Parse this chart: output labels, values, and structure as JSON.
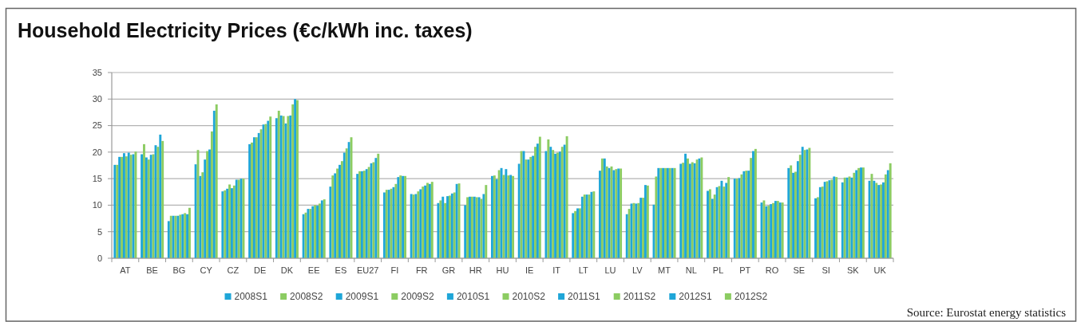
{
  "chart_data": {
    "type": "bar",
    "title": "Household Electricity Prices (€c/kWh inc. taxes)",
    "categories": [
      "AT",
      "BE",
      "BG",
      "CY",
      "CZ",
      "DE",
      "DK",
      "EE",
      "ES",
      "EU27",
      "FI",
      "FR",
      "GR",
      "HR",
      "HU",
      "IE",
      "IT",
      "LT",
      "LU",
      "LV",
      "MT",
      "NL",
      "PL",
      "PT",
      "RO",
      "SE",
      "SI",
      "SK",
      "UK"
    ],
    "series": [
      {
        "name": "2008S1",
        "color": "#1fa6d8",
        "values": [
          17.6,
          19.6,
          7.0,
          17.7,
          12.6,
          21.5,
          26.4,
          8.3,
          13.5,
          15.9,
          12.4,
          12.1,
          10.4,
          10.0,
          15.5,
          17.8,
          20.2,
          8.5,
          16.5,
          8.3,
          10.1,
          17.8,
          12.7,
          15.0,
          10.5,
          17.0,
          11.3,
          14.3,
          14.6
        ]
      },
      {
        "name": "2008S2",
        "color": "#8ccc62",
        "values": [
          17.6,
          21.5,
          8.0,
          20.4,
          12.8,
          21.8,
          27.8,
          8.6,
          15.6,
          16.4,
          12.9,
          12.0,
          10.9,
          11.5,
          15.6,
          20.2,
          22.4,
          8.9,
          18.8,
          9.3,
          15.4,
          18.0,
          13.0,
          15.0,
          10.9,
          17.5,
          11.5,
          15.2,
          15.9
        ]
      },
      {
        "name": "2009S1",
        "color": "#1fa6d8",
        "values": [
          19.1,
          19.0,
          8.0,
          15.5,
          13.1,
          22.8,
          26.9,
          9.3,
          16.0,
          16.4,
          12.9,
          12.1,
          11.6,
          11.6,
          14.9,
          20.2,
          21.0,
          9.4,
          18.8,
          10.3,
          17.0,
          19.7,
          11.2,
          15.1,
          9.8,
          16.1,
          13.4,
          15.2,
          14.6
        ]
      },
      {
        "name": "2009S2",
        "color": "#8ccc62",
        "values": [
          19.1,
          18.6,
          8.0,
          16.2,
          13.9,
          22.8,
          26.8,
          9.3,
          16.9,
          16.5,
          13.1,
          12.6,
          10.4,
          11.6,
          16.6,
          18.6,
          20.4,
          9.4,
          17.3,
          10.4,
          17.0,
          18.8,
          12.0,
          15.8,
          9.9,
          16.3,
          13.5,
          15.4,
          14.2
        ]
      },
      {
        "name": "2010S1",
        "color": "#1fa6d8",
        "values": [
          19.8,
          19.5,
          8.0,
          18.6,
          13.2,
          23.6,
          25.4,
          9.8,
          17.6,
          16.8,
          13.4,
          13.0,
          11.7,
          11.6,
          17.0,
          18.6,
          19.7,
          11.6,
          17.0,
          10.3,
          17.0,
          17.8,
          13.4,
          16.4,
          10.2,
          18.3,
          14.4,
          15.2,
          13.8
        ]
      },
      {
        "name": "2010S2",
        "color": "#8ccc62",
        "values": [
          19.2,
          19.6,
          8.2,
          20.2,
          13.7,
          24.3,
          26.8,
          10.0,
          18.3,
          17.2,
          14.0,
          13.5,
          11.8,
          11.5,
          15.7,
          19.1,
          19.9,
          12.0,
          17.3,
          10.4,
          17.0,
          18.1,
          13.6,
          16.5,
          10.4,
          19.5,
          14.5,
          16.1,
          13.9
        ]
      },
      {
        "name": "2011S1",
        "color": "#1fa6d8",
        "values": [
          19.9,
          21.3,
          8.3,
          20.5,
          14.8,
          25.2,
          26.9,
          9.9,
          19.9,
          17.9,
          15.3,
          13.7,
          12.2,
          11.5,
          16.8,
          19.3,
          20.1,
          12.0,
          16.6,
          11.4,
          17.0,
          17.9,
          14.6,
          16.5,
          10.8,
          21.0,
          14.7,
          16.6,
          14.3
        ]
      },
      {
        "name": "2011S2",
        "color": "#8ccc62",
        "values": [
          19.5,
          21.0,
          8.5,
          23.9,
          14.8,
          25.3,
          29.0,
          10.3,
          20.7,
          18.1,
          15.6,
          14.2,
          12.4,
          11.2,
          15.6,
          21.0,
          21.0,
          12.0,
          16.8,
          11.4,
          17.0,
          18.6,
          13.5,
          18.9,
          10.8,
          20.4,
          14.8,
          17.0,
          15.8
        ]
      },
      {
        "name": "2012S1",
        "color": "#1fa6d8",
        "values": [
          19.6,
          23.3,
          8.3,
          27.8,
          15.0,
          25.9,
          30.0,
          10.9,
          21.9,
          18.9,
          15.5,
          14.0,
          14.0,
          12.1,
          15.7,
          21.6,
          21.4,
          12.5,
          16.9,
          13.8,
          17.0,
          18.8,
          14.2,
          20.2,
          10.5,
          20.5,
          15.4,
          17.1,
          16.6
        ]
      },
      {
        "name": "2012S2",
        "color": "#8ccc62",
        "values": [
          20.1,
          22.1,
          9.5,
          29.0,
          15.0,
          26.7,
          29.8,
          11.1,
          22.8,
          19.7,
          15.5,
          14.4,
          14.1,
          13.8,
          15.5,
          22.9,
          23.0,
          12.6,
          16.9,
          13.7,
          17.0,
          19.0,
          15.3,
          20.6,
          10.5,
          20.8,
          15.3,
          17.1,
          17.9
        ]
      }
    ],
    "ylim": [
      0,
      35
    ],
    "yticks": [
      0,
      5,
      10,
      15,
      20,
      25,
      30,
      35
    ],
    "grid": "y",
    "legend": "bottom",
    "annotations": [
      "Source: Eurostat energy statistics"
    ]
  }
}
